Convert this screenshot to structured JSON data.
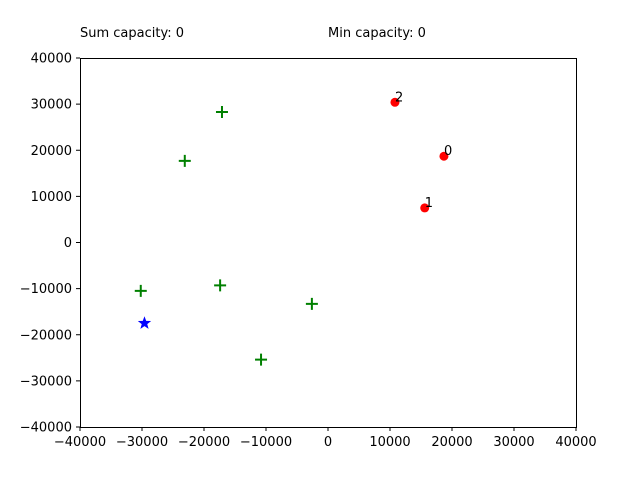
{
  "header": {
    "sum_capacity": "Sum capacity: 0",
    "min_capacity": "Min capacity: 0"
  },
  "chart_data": {
    "type": "scatter",
    "title": "",
    "xlabel": "",
    "ylabel": "",
    "xlim": [
      -40000,
      40000
    ],
    "ylim": [
      -40000,
      40000
    ],
    "xticks": [
      -40000,
      -30000,
      -20000,
      -10000,
      0,
      10000,
      20000,
      30000,
      40000
    ],
    "yticks": [
      -40000,
      -30000,
      -20000,
      -10000,
      0,
      10000,
      20000,
      30000,
      40000
    ],
    "grid": false,
    "series": [
      {
        "marker": "circle",
        "color": "#ff0000",
        "points": [
          {
            "x": 18700,
            "y": 18700,
            "label": "0"
          },
          {
            "x": 15600,
            "y": 7500,
            "label": "1"
          },
          {
            "x": 10800,
            "y": 30400,
            "label": "2"
          }
        ]
      },
      {
        "marker": "plus",
        "color": "#008000",
        "points": [
          {
            "x": -17100,
            "y": 28300
          },
          {
            "x": -23100,
            "y": 17700
          },
          {
            "x": -30200,
            "y": -10500
          },
          {
            "x": -17400,
            "y": -9300
          },
          {
            "x": -2600,
            "y": -13300
          },
          {
            "x": -10800,
            "y": -25400
          }
        ]
      },
      {
        "marker": "star",
        "color": "#0000ff",
        "points": [
          {
            "x": -29600,
            "y": -17500
          }
        ]
      }
    ]
  }
}
